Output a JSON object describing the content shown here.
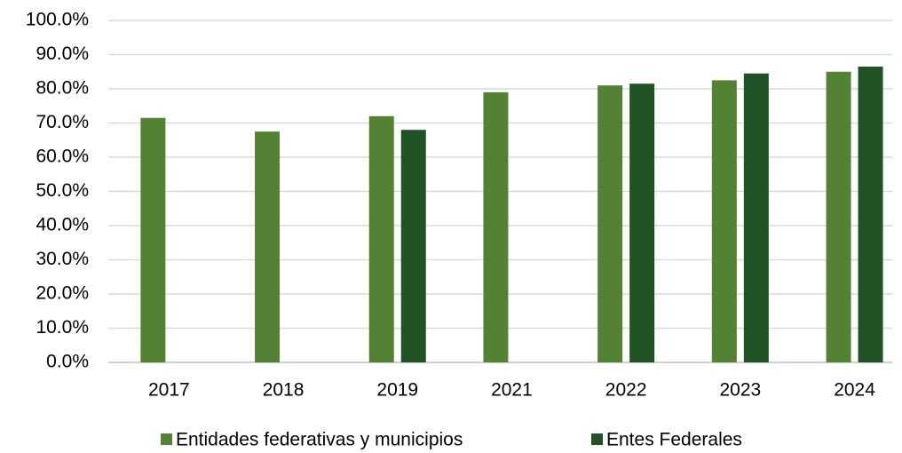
{
  "chart_data": {
    "type": "bar",
    "categories": [
      "2017",
      "2018",
      "2019",
      "2021",
      "2022",
      "2023",
      "2024"
    ],
    "series": [
      {
        "name": "Entidades federativas y municipios",
        "color": "#548235",
        "values": [
          71.5,
          67.5,
          72,
          79,
          81,
          82.5,
          85
        ]
      },
      {
        "name": "Entes Federales",
        "color": "#1f5224",
        "values": [
          null,
          null,
          68,
          null,
          81.5,
          84.5,
          86.5
        ]
      }
    ],
    "ylim": [
      0,
      100
    ],
    "yticks": [
      {
        "value": 0,
        "label": "0.0%"
      },
      {
        "value": 10,
        "label": "10.0%"
      },
      {
        "value": 20,
        "label": "20.0%"
      },
      {
        "value": 30,
        "label": "30.0%"
      },
      {
        "value": 40,
        "label": "40.0%"
      },
      {
        "value": 50,
        "label": "50.0%"
      },
      {
        "value": 60,
        "label": "60.0%"
      },
      {
        "value": 70,
        "label": "70.0%"
      },
      {
        "value": 80,
        "label": "80.0%"
      },
      {
        "value": 90,
        "label": "90.0%"
      },
      {
        "value": 100,
        "label": "100.0%"
      }
    ],
    "grid": true,
    "legend": "bottom"
  }
}
